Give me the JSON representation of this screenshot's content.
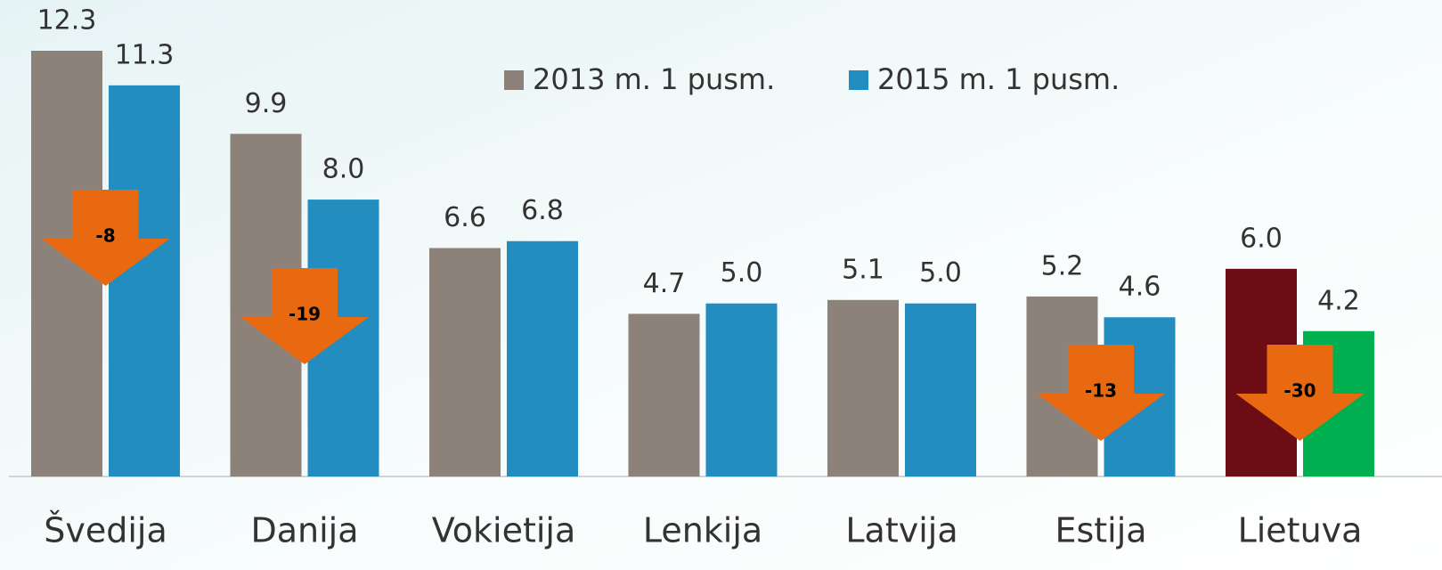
{
  "chart_data": {
    "type": "bar",
    "categories": [
      "Švedija",
      "Danija",
      "Vokietija",
      "Lenkija",
      "Latvija",
      "Estija",
      "Lietuva"
    ],
    "series": [
      {
        "name": "2013 m. 1 pusm.",
        "color": "#8c8279",
        "colors": [
          "#8c8279",
          "#8c8279",
          "#8c8279",
          "#8c8279",
          "#8c8279",
          "#8c8279",
          "#6b0d12"
        ],
        "values": [
          12.3,
          9.9,
          6.6,
          4.7,
          5.1,
          5.2,
          6.0
        ],
        "value_labels": [
          "12.3",
          "9.9",
          "6.6",
          "4.7",
          "5.1",
          "5.2",
          "6.0"
        ]
      },
      {
        "name": "2015 m. 1 pusm.",
        "color": "#238dbf",
        "colors": [
          "#238dbf",
          "#238dbf",
          "#238dbf",
          "#238dbf",
          "#238dbf",
          "#238dbf",
          "#00b050"
        ],
        "values": [
          11.3,
          8.0,
          6.8,
          5.0,
          5.0,
          4.6,
          4.2
        ],
        "value_labels": [
          "11.3",
          "8.0",
          "6.8",
          "5.0",
          "5.0",
          "4.6",
          "4.2"
        ]
      }
    ],
    "changes": [
      -8,
      -19,
      null,
      null,
      null,
      -13,
      -30
    ]
  }
}
